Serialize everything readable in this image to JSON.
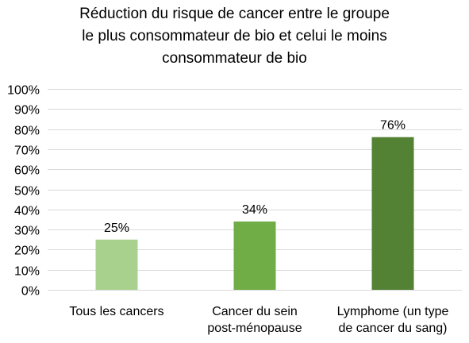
{
  "chart_data": {
    "type": "bar",
    "title_lines": [
      "Réduction du risque de cancer entre le groupe",
      "le plus consommateur de bio et celui le moins",
      "consommateur de bio"
    ],
    "categories": [
      [
        "Tous les cancers"
      ],
      [
        "Cancer du sein",
        "post-ménopause"
      ],
      [
        "Lymphome (un type",
        "de cancer du sang)"
      ]
    ],
    "values": [
      25,
      34,
      76
    ],
    "data_labels": [
      "25%",
      "34%",
      "76%"
    ],
    "bar_colors": [
      "#a9d18e",
      "#70ad47",
      "#548235"
    ],
    "ylim": [
      0,
      100
    ],
    "yticks": [
      0,
      10,
      20,
      30,
      40,
      50,
      60,
      70,
      80,
      90,
      100
    ],
    "ytick_labels": [
      "0%",
      "10%",
      "20%",
      "30%",
      "40%",
      "50%",
      "60%",
      "70%",
      "80%",
      "90%",
      "100%"
    ],
    "grid": true,
    "legend": "none",
    "xlabel": "",
    "ylabel": ""
  }
}
